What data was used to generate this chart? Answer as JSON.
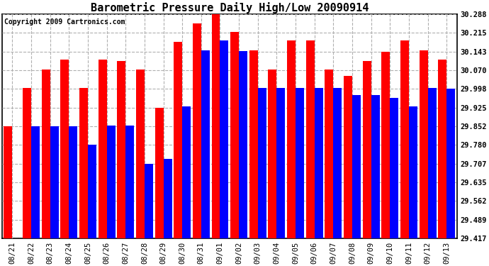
{
  "title": "Barometric Pressure Daily High/Low 20090914",
  "copyright": "Copyright 2009 Cartronics.com",
  "labels": [
    "08/21",
    "08/22",
    "08/23",
    "08/24",
    "08/25",
    "08/26",
    "08/27",
    "08/28",
    "08/29",
    "08/30",
    "08/31",
    "09/01",
    "09/02",
    "09/03",
    "09/04",
    "09/05",
    "09/06",
    "09/07",
    "09/08",
    "09/09",
    "09/10",
    "09/11",
    "09/12",
    "09/13"
  ],
  "highs": [
    29.852,
    30.0,
    30.073,
    30.112,
    30.0,
    30.112,
    30.107,
    30.073,
    29.925,
    30.18,
    30.252,
    30.288,
    30.218,
    30.148,
    30.073,
    30.185,
    30.185,
    30.073,
    30.048,
    30.107,
    30.143,
    30.185,
    30.148,
    30.112
  ],
  "lows": [
    29.417,
    29.852,
    29.852,
    29.852,
    29.78,
    29.855,
    29.855,
    29.707,
    29.725,
    29.93,
    30.148,
    30.185,
    30.145,
    30.0,
    30.0,
    30.0,
    30.0,
    30.0,
    29.975,
    29.975,
    29.962,
    29.93,
    30.0,
    29.998
  ],
  "bar_color_high": "#ff0000",
  "bar_color_low": "#0000ff",
  "bg_color": "#ffffff",
  "plot_bg_color": "#ffffff",
  "grid_color": "#b0b0b0",
  "ymin": 29.417,
  "ymax": 30.288,
  "yticks": [
    29.417,
    29.489,
    29.562,
    29.635,
    29.707,
    29.78,
    29.852,
    29.925,
    29.998,
    30.07,
    30.143,
    30.215,
    30.288
  ],
  "title_fontsize": 11,
  "tick_fontsize": 7.5,
  "copyright_fontsize": 7
}
